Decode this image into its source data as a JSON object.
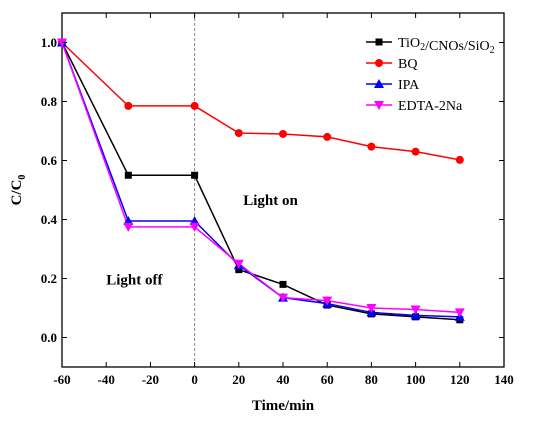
{
  "chart_data": {
    "type": "line",
    "xlabel": "Time/min",
    "ylabel": "C/C",
    "ylabel_subscript": "0",
    "xlim": [
      -60,
      140
    ],
    "ylim": [
      -0.1,
      1.1
    ],
    "xticks": [
      -60,
      -40,
      -20,
      0,
      20,
      40,
      60,
      80,
      100,
      120,
      140
    ],
    "yticks": [
      0.0,
      0.2,
      0.4,
      0.6,
      0.8,
      1.0
    ],
    "ytick_labels": [
      "0.0",
      "0.2",
      "0.4",
      "0.6",
      "0.8",
      "1.0"
    ],
    "x": [
      -60,
      -30,
      0,
      20,
      40,
      60,
      80,
      100,
      120
    ],
    "vline_x": 0,
    "grid": false,
    "legend_position": "top-right",
    "annotations": [
      {
        "text": "Light off",
        "x": -40,
        "y": 0.18
      },
      {
        "text": "Light on",
        "x": 22,
        "y": 0.45
      }
    ],
    "series": [
      {
        "name_parts": [
          {
            "t": "TiO",
            "sub": false
          },
          {
            "t": "2",
            "sub": true
          },
          {
            "t": "/CNOs/SiO",
            "sub": false
          },
          {
            "t": "2",
            "sub": true
          }
        ],
        "color": "#000000",
        "marker": "square",
        "values": [
          1.0,
          0.55,
          0.55,
          0.23,
          0.18,
          0.11,
          0.08,
          0.07,
          0.06
        ]
      },
      {
        "name_parts": [
          {
            "t": "BQ",
            "sub": false
          }
        ],
        "color": "#ff0000",
        "marker": "circle",
        "values": [
          1.0,
          0.785,
          0.785,
          0.693,
          0.69,
          0.68,
          0.647,
          0.63,
          0.602
        ]
      },
      {
        "name_parts": [
          {
            "t": "IPA",
            "sub": false
          }
        ],
        "color": "#0000ff",
        "marker": "triangle-up",
        "values": [
          1.0,
          0.395,
          0.395,
          0.245,
          0.135,
          0.115,
          0.085,
          0.075,
          0.07
        ]
      },
      {
        "name_parts": [
          {
            "t": "EDTA-2Na",
            "sub": false
          }
        ],
        "color": "#ff00ff",
        "marker": "triangle-down",
        "values": [
          1.0,
          0.375,
          0.375,
          0.25,
          0.135,
          0.125,
          0.1,
          0.095,
          0.085
        ]
      }
    ]
  }
}
